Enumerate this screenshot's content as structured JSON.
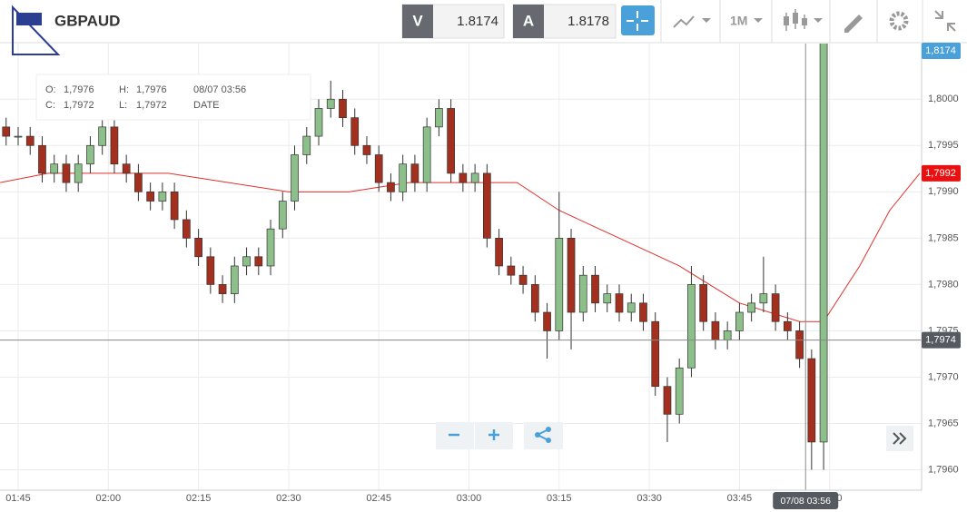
{
  "header": {
    "symbol": "GBPAUD",
    "bid_label": "V",
    "bid": "1.8174",
    "ask_label": "A",
    "ask": "1.8178",
    "timeframe": "1M"
  },
  "tooltip": {
    "o_label": "O:",
    "o": "1,7976",
    "h_label": "H:",
    "h": "1,7976",
    "date": "08/07 03:56",
    "c_label": "C:",
    "c": "1,7972",
    "l_label": "L:",
    "l": "1,7972",
    "date_label": "DATE"
  },
  "chart_data": {
    "type": "candlestick",
    "x": [
      "01:43",
      "01:45",
      "01:47",
      "01:49",
      "01:51",
      "01:53",
      "01:55",
      "01:57",
      "01:59",
      "02:01",
      "02:03",
      "02:05",
      "02:07",
      "02:09",
      "02:11",
      "02:13",
      "02:15",
      "02:17",
      "02:19",
      "02:21",
      "02:23",
      "02:25",
      "02:27",
      "02:29",
      "02:31",
      "02:33",
      "02:35",
      "02:37",
      "02:39",
      "02:41",
      "02:43",
      "02:45",
      "02:47",
      "02:49",
      "02:51",
      "02:53",
      "02:55",
      "02:57",
      "02:59",
      "03:01",
      "03:03",
      "03:05",
      "03:07",
      "03:09",
      "03:11",
      "03:13",
      "03:15",
      "03:17",
      "03:19",
      "03:21",
      "03:23",
      "03:25",
      "03:27",
      "03:29",
      "03:31",
      "03:33",
      "03:35",
      "03:37",
      "03:39",
      "03:41",
      "03:43",
      "03:45",
      "03:47",
      "03:49",
      "03:51",
      "03:53",
      "03:55",
      "03:57",
      "03:59"
    ],
    "open": [
      1.7997,
      1.7996,
      1.7996,
      1.7995,
      1.7992,
      1.7993,
      1.7991,
      1.7993,
      1.7995,
      1.7997,
      1.7993,
      1.7992,
      1.799,
      1.7989,
      1.799,
      1.7987,
      1.7985,
      1.7983,
      1.798,
      1.7979,
      1.7982,
      1.7983,
      1.7982,
      1.7986,
      1.7989,
      1.7994,
      1.7996,
      1.7999,
      1.8,
      1.7998,
      1.7995,
      1.7994,
      1.7991,
      1.799,
      1.7993,
      1.7991,
      1.7997,
      1.7999,
      1.7992,
      1.7991,
      1.7992,
      1.7985,
      1.7982,
      1.7981,
      1.798,
      1.7977,
      1.7975,
      1.7985,
      1.7977,
      1.7981,
      1.7978,
      1.7979,
      1.7977,
      1.7978,
      1.7976,
      1.7969,
      1.7966,
      1.7971,
      1.798,
      1.7976,
      1.7974,
      1.7975,
      1.7977,
      1.7978,
      1.7979,
      1.7976,
      1.7975,
      1.7972,
      1.7963
    ],
    "high": [
      1.7998,
      1.7997,
      1.7997,
      1.7996,
      1.7994,
      1.7994,
      1.7994,
      1.7996,
      1.7998,
      1.7998,
      1.7994,
      1.7993,
      1.7991,
      1.7991,
      1.7991,
      1.7988,
      1.7986,
      1.7984,
      1.7981,
      1.7983,
      1.7984,
      1.7984,
      1.7987,
      1.799,
      1.7995,
      1.7997,
      1.8,
      1.8002,
      1.8001,
      1.7999,
      1.7996,
      1.7995,
      1.7992,
      1.7994,
      1.7994,
      1.7998,
      1.8,
      1.8,
      1.7993,
      1.7993,
      1.7993,
      1.7986,
      1.7983,
      1.7982,
      1.7981,
      1.7978,
      1.799,
      1.7986,
      1.7982,
      1.7982,
      1.798,
      1.798,
      1.7979,
      1.7979,
      1.7977,
      1.797,
      1.7972,
      1.7982,
      1.7981,
      1.7977,
      1.7976,
      1.7978,
      1.7979,
      1.7983,
      1.798,
      1.7977,
      1.7976,
      1.7973,
      1.8174
    ],
    "low": [
      1.7995,
      1.7995,
      1.7994,
      1.7991,
      1.7991,
      1.799,
      1.799,
      1.7992,
      1.7994,
      1.7992,
      1.7991,
      1.7989,
      1.7988,
      1.7988,
      1.7986,
      1.7984,
      1.7982,
      1.7979,
      1.7978,
      1.7978,
      1.7981,
      1.7981,
      1.7981,
      1.7985,
      1.7988,
      1.7993,
      1.7995,
      1.7998,
      1.7997,
      1.7994,
      1.7993,
      1.799,
      1.7989,
      1.7989,
      1.799,
      1.799,
      1.7996,
      1.7991,
      1.799,
      1.799,
      1.7984,
      1.7981,
      1.798,
      1.7979,
      1.7976,
      1.7972,
      1.7974,
      1.7973,
      1.7976,
      1.7977,
      1.7977,
      1.7976,
      1.7976,
      1.7975,
      1.7968,
      1.7963,
      1.7965,
      1.797,
      1.7975,
      1.7973,
      1.7973,
      1.7974,
      1.7976,
      1.7977,
      1.7975,
      1.7974,
      1.7971,
      1.796,
      1.796
    ],
    "close": [
      1.7996,
      1.7996,
      1.7995,
      1.7992,
      1.7993,
      1.7991,
      1.7993,
      1.7995,
      1.7997,
      1.7993,
      1.7992,
      1.799,
      1.7989,
      1.799,
      1.7987,
      1.7985,
      1.7983,
      1.798,
      1.7979,
      1.7982,
      1.7983,
      1.7982,
      1.7986,
      1.7989,
      1.7994,
      1.7996,
      1.7999,
      1.8,
      1.7998,
      1.7995,
      1.7994,
      1.7991,
      1.799,
      1.7993,
      1.7991,
      1.7997,
      1.7999,
      1.7992,
      1.7991,
      1.7992,
      1.7985,
      1.7982,
      1.7981,
      1.798,
      1.7977,
      1.7975,
      1.7985,
      1.7977,
      1.7981,
      1.7978,
      1.7979,
      1.7977,
      1.7978,
      1.7976,
      1.7969,
      1.7966,
      1.7971,
      1.798,
      1.7976,
      1.7974,
      1.7975,
      1.7977,
      1.7978,
      1.7979,
      1.7976,
      1.7975,
      1.7972,
      1.7963,
      1.8174
    ],
    "up_color": "#8cbf8a",
    "down_color": "#a3301f",
    "ma": {
      "color": "#e0302a",
      "x": [
        "01:42",
        "01:50",
        "02:00",
        "02:10",
        "02:20",
        "02:30",
        "02:40",
        "02:50",
        "03:00",
        "03:08",
        "03:15",
        "03:25",
        "03:35",
        "03:45",
        "03:55",
        "03:59",
        "04:05",
        "04:10",
        "04:15"
      ],
      "values": [
        1.7991,
        1.7992,
        1.7992,
        1.7992,
        1.7991,
        1.799,
        1.799,
        1.7991,
        1.7991,
        1.7991,
        1.7988,
        1.7985,
        1.7982,
        1.7978,
        1.7976,
        1.7976,
        1.7982,
        1.7988,
        1.7992
      ]
    },
    "ylim": [
      1.79578,
      1.8006
    ],
    "yticks": [
      {
        "value": 1.796,
        "label": "1,7960"
      },
      {
        "value": 1.7965,
        "label": "1,7965"
      },
      {
        "value": 1.797,
        "label": "1,7970"
      },
      {
        "value": 1.7975,
        "label": "1,7975"
      },
      {
        "value": 1.798,
        "label": "1,7980"
      },
      {
        "value": 1.7985,
        "label": "1,7985"
      },
      {
        "value": 1.799,
        "label": "1,7990"
      },
      {
        "value": 1.7995,
        "label": "1,7995"
      },
      {
        "value": 1.8,
        "label": "1,8000"
      }
    ],
    "xticks": [
      "01:45",
      "02:00",
      "02:15",
      "02:30",
      "02:45",
      "03:00",
      "03:15",
      "03:30",
      "03:45",
      "04:00"
    ],
    "grid": true,
    "price_tags": [
      {
        "value": 1.8174,
        "label": "1,8174",
        "color": "#4aa0d8"
      },
      {
        "value": 1.7992,
        "label": "1,7992",
        "color": "#e81010"
      },
      {
        "value": 1.7974,
        "label": "1,7974",
        "color": "#555a60"
      }
    ],
    "crosshair": {
      "x": "03:56",
      "x_label": "07/08 03:56",
      "y": 1.7974
    }
  }
}
